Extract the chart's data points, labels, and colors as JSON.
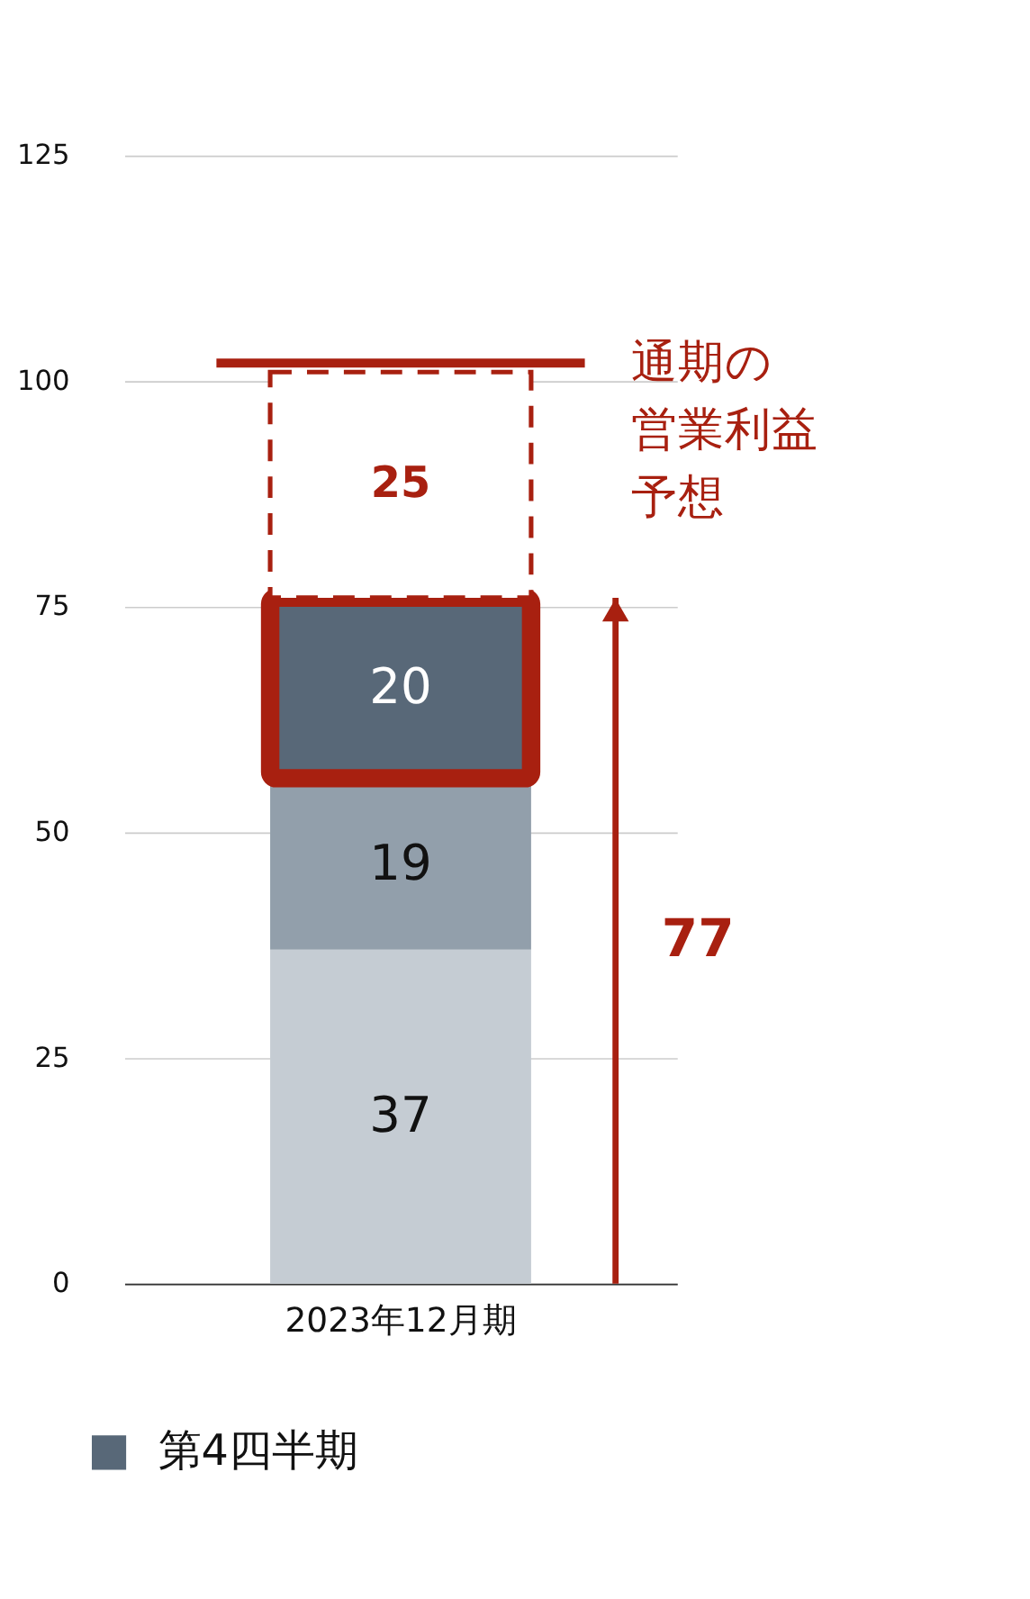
{
  "chart_data": {
    "type": "bar",
    "stacked": true,
    "categories": [
      "2023年12月期"
    ],
    "series": [
      {
        "color": "#c5ccd3",
        "values": [
          37
        ]
      },
      {
        "color": "#929fab",
        "values": [
          19
        ]
      },
      {
        "name": "第4四半期",
        "color": "#586878",
        "values": [
          20
        ]
      },
      {
        "color": "#ffffff",
        "values": [
          25
        ]
      }
    ],
    "data_labels": true,
    "ylim": [
      0,
      125
    ],
    "yticks": [
      0,
      25,
      50,
      75,
      100,
      125
    ],
    "grid": "y",
    "legend": "bottom left",
    "ref_lines": [
      {
        "axis": "y",
        "value": 102,
        "label": "通期の営業利益予想",
        "color": "#a82010"
      }
    ],
    "annotations": [
      "77"
    ]
  }
}
